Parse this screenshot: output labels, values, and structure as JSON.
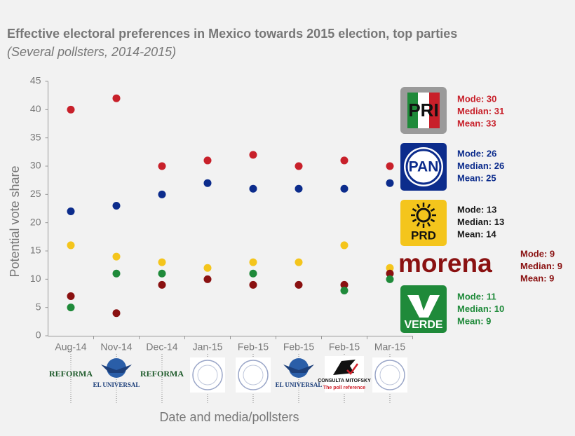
{
  "chart_data": {
    "type": "scatter",
    "title": "Effective electoral preferences in Mexico towards 2015 election, top parties",
    "subtitle": "(Several pollsters, 2014-2015)",
    "x_label": "Date and media/pollsters",
    "y_label": "Potential vote share",
    "categories": [
      "Aug-14",
      "Nov-14",
      "Dec-14",
      "Jan-15",
      "Feb-15",
      "Feb-15",
      "Feb-15",
      "Mar-15"
    ],
    "pollsters": [
      {
        "name": "REFORMA"
      },
      {
        "name": "EL UNIVERSAL"
      },
      {
        "name": "REFORMA"
      },
      null,
      null,
      {
        "name": "EL UNIVERSAL"
      },
      {
        "name": "CONSULTA MITOFSKY",
        "tagline": "The poll reference"
      },
      null
    ],
    "ylim": [
      0,
      45
    ],
    "yticks": [
      0,
      5,
      10,
      15,
      20,
      25,
      30,
      35,
      40,
      45
    ],
    "grid": false,
    "series": [
      {
        "name": "PRI",
        "color": "#c8202a",
        "stats_color": "#c8202a",
        "values": [
          40,
          42,
          30,
          31,
          32,
          30,
          31,
          30
        ],
        "stats": [
          "Mode: 30",
          "Median: 31",
          "Mean: 33"
        ]
      },
      {
        "name": "PAN",
        "color": "#0c2c8c",
        "stats_color": "#0c2c8c",
        "values": [
          22,
          23,
          25,
          27,
          26,
          26,
          26,
          27
        ],
        "stats": [
          "Mode: 26",
          "Median: 26",
          "Mean: 25"
        ]
      },
      {
        "name": "PRD",
        "color": "#f4c51c",
        "stats_color": "#1a1a1a",
        "values": [
          16,
          14,
          13,
          12,
          13,
          13,
          16,
          12
        ],
        "stats": [
          "Mode: 13",
          "Median: 13",
          "Mean: 14"
        ]
      },
      {
        "name": "morena",
        "color": "#8a1111",
        "stats_color": "#8a1111",
        "values": [
          7,
          4,
          9,
          10,
          9,
          9,
          9,
          11
        ],
        "stats": [
          "Mode: 9",
          "Median: 9",
          "Mean: 9"
        ]
      },
      {
        "name": "VERDE",
        "color": "#1f8a3a",
        "stats_color": "#1f8a3a",
        "values": [
          5,
          11,
          11,
          null,
          11,
          null,
          8,
          10
        ],
        "stats": [
          "Mode: 11",
          "Median: 10",
          "Mean: 9"
        ]
      }
    ]
  }
}
